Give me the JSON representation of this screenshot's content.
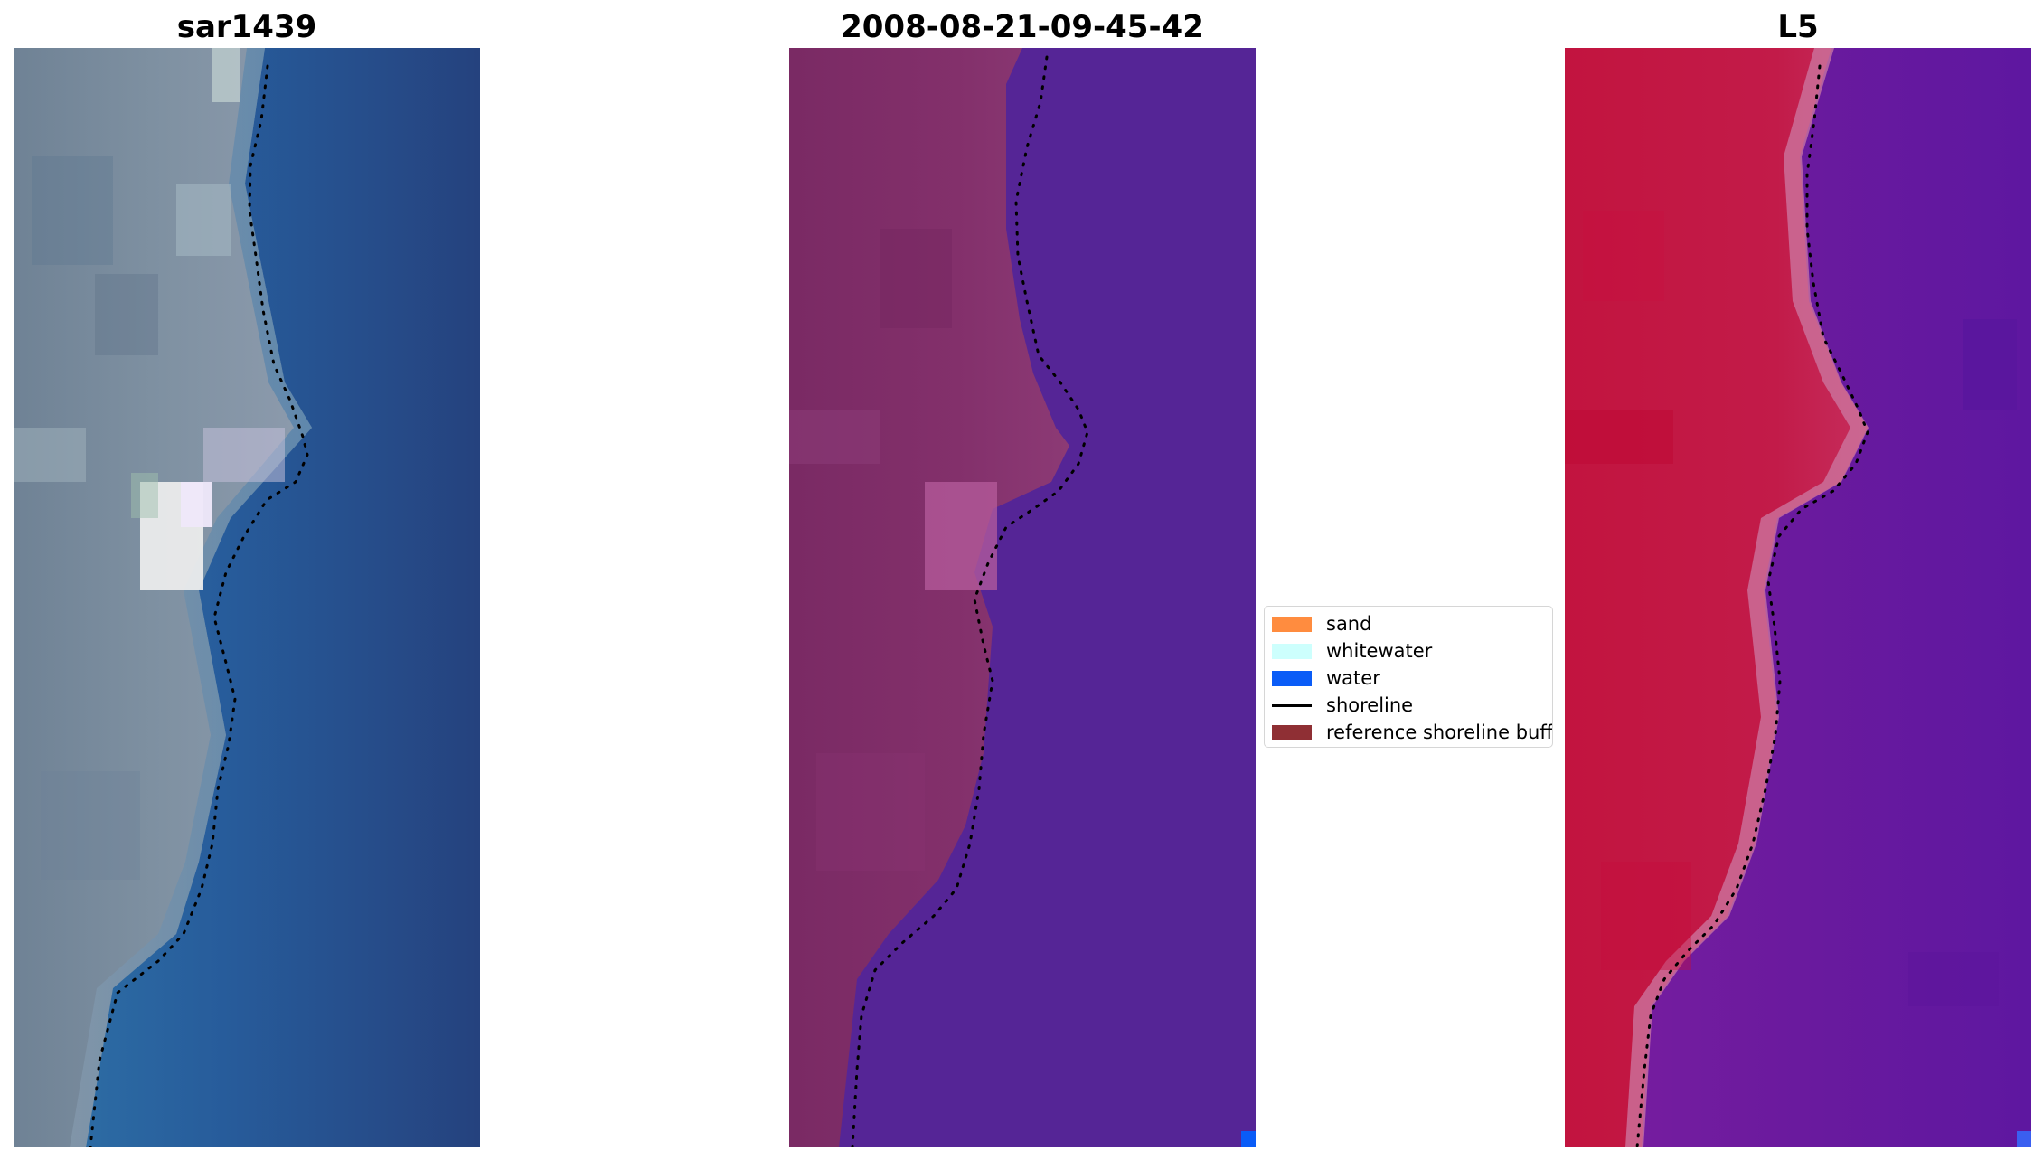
{
  "panels": [
    {
      "title": "sar1439"
    },
    {
      "title": "2008-08-21-09-45-42"
    },
    {
      "title": "L5"
    }
  ],
  "legend": {
    "items": [
      {
        "label": "sand",
        "color": "#ff8c3f",
        "kind": "patch"
      },
      {
        "label": "whitewater",
        "color": "#cdfffd",
        "kind": "patch"
      },
      {
        "label": "water",
        "color": "#0a5cf7",
        "kind": "patch"
      },
      {
        "label": "shoreline",
        "color": "#000000",
        "kind": "line"
      },
      {
        "label": "reference shoreline buffer",
        "color": "#8f2f34",
        "kind": "patch"
      }
    ]
  },
  "colors": {
    "rgb_water": "#2a5f9e",
    "rgb_land": "#7d8fa2",
    "class_land": "#7f2c68",
    "class_water": "#552596",
    "mndwi_land": "#c2184a",
    "mndwi_water": "#6c1a9c"
  }
}
